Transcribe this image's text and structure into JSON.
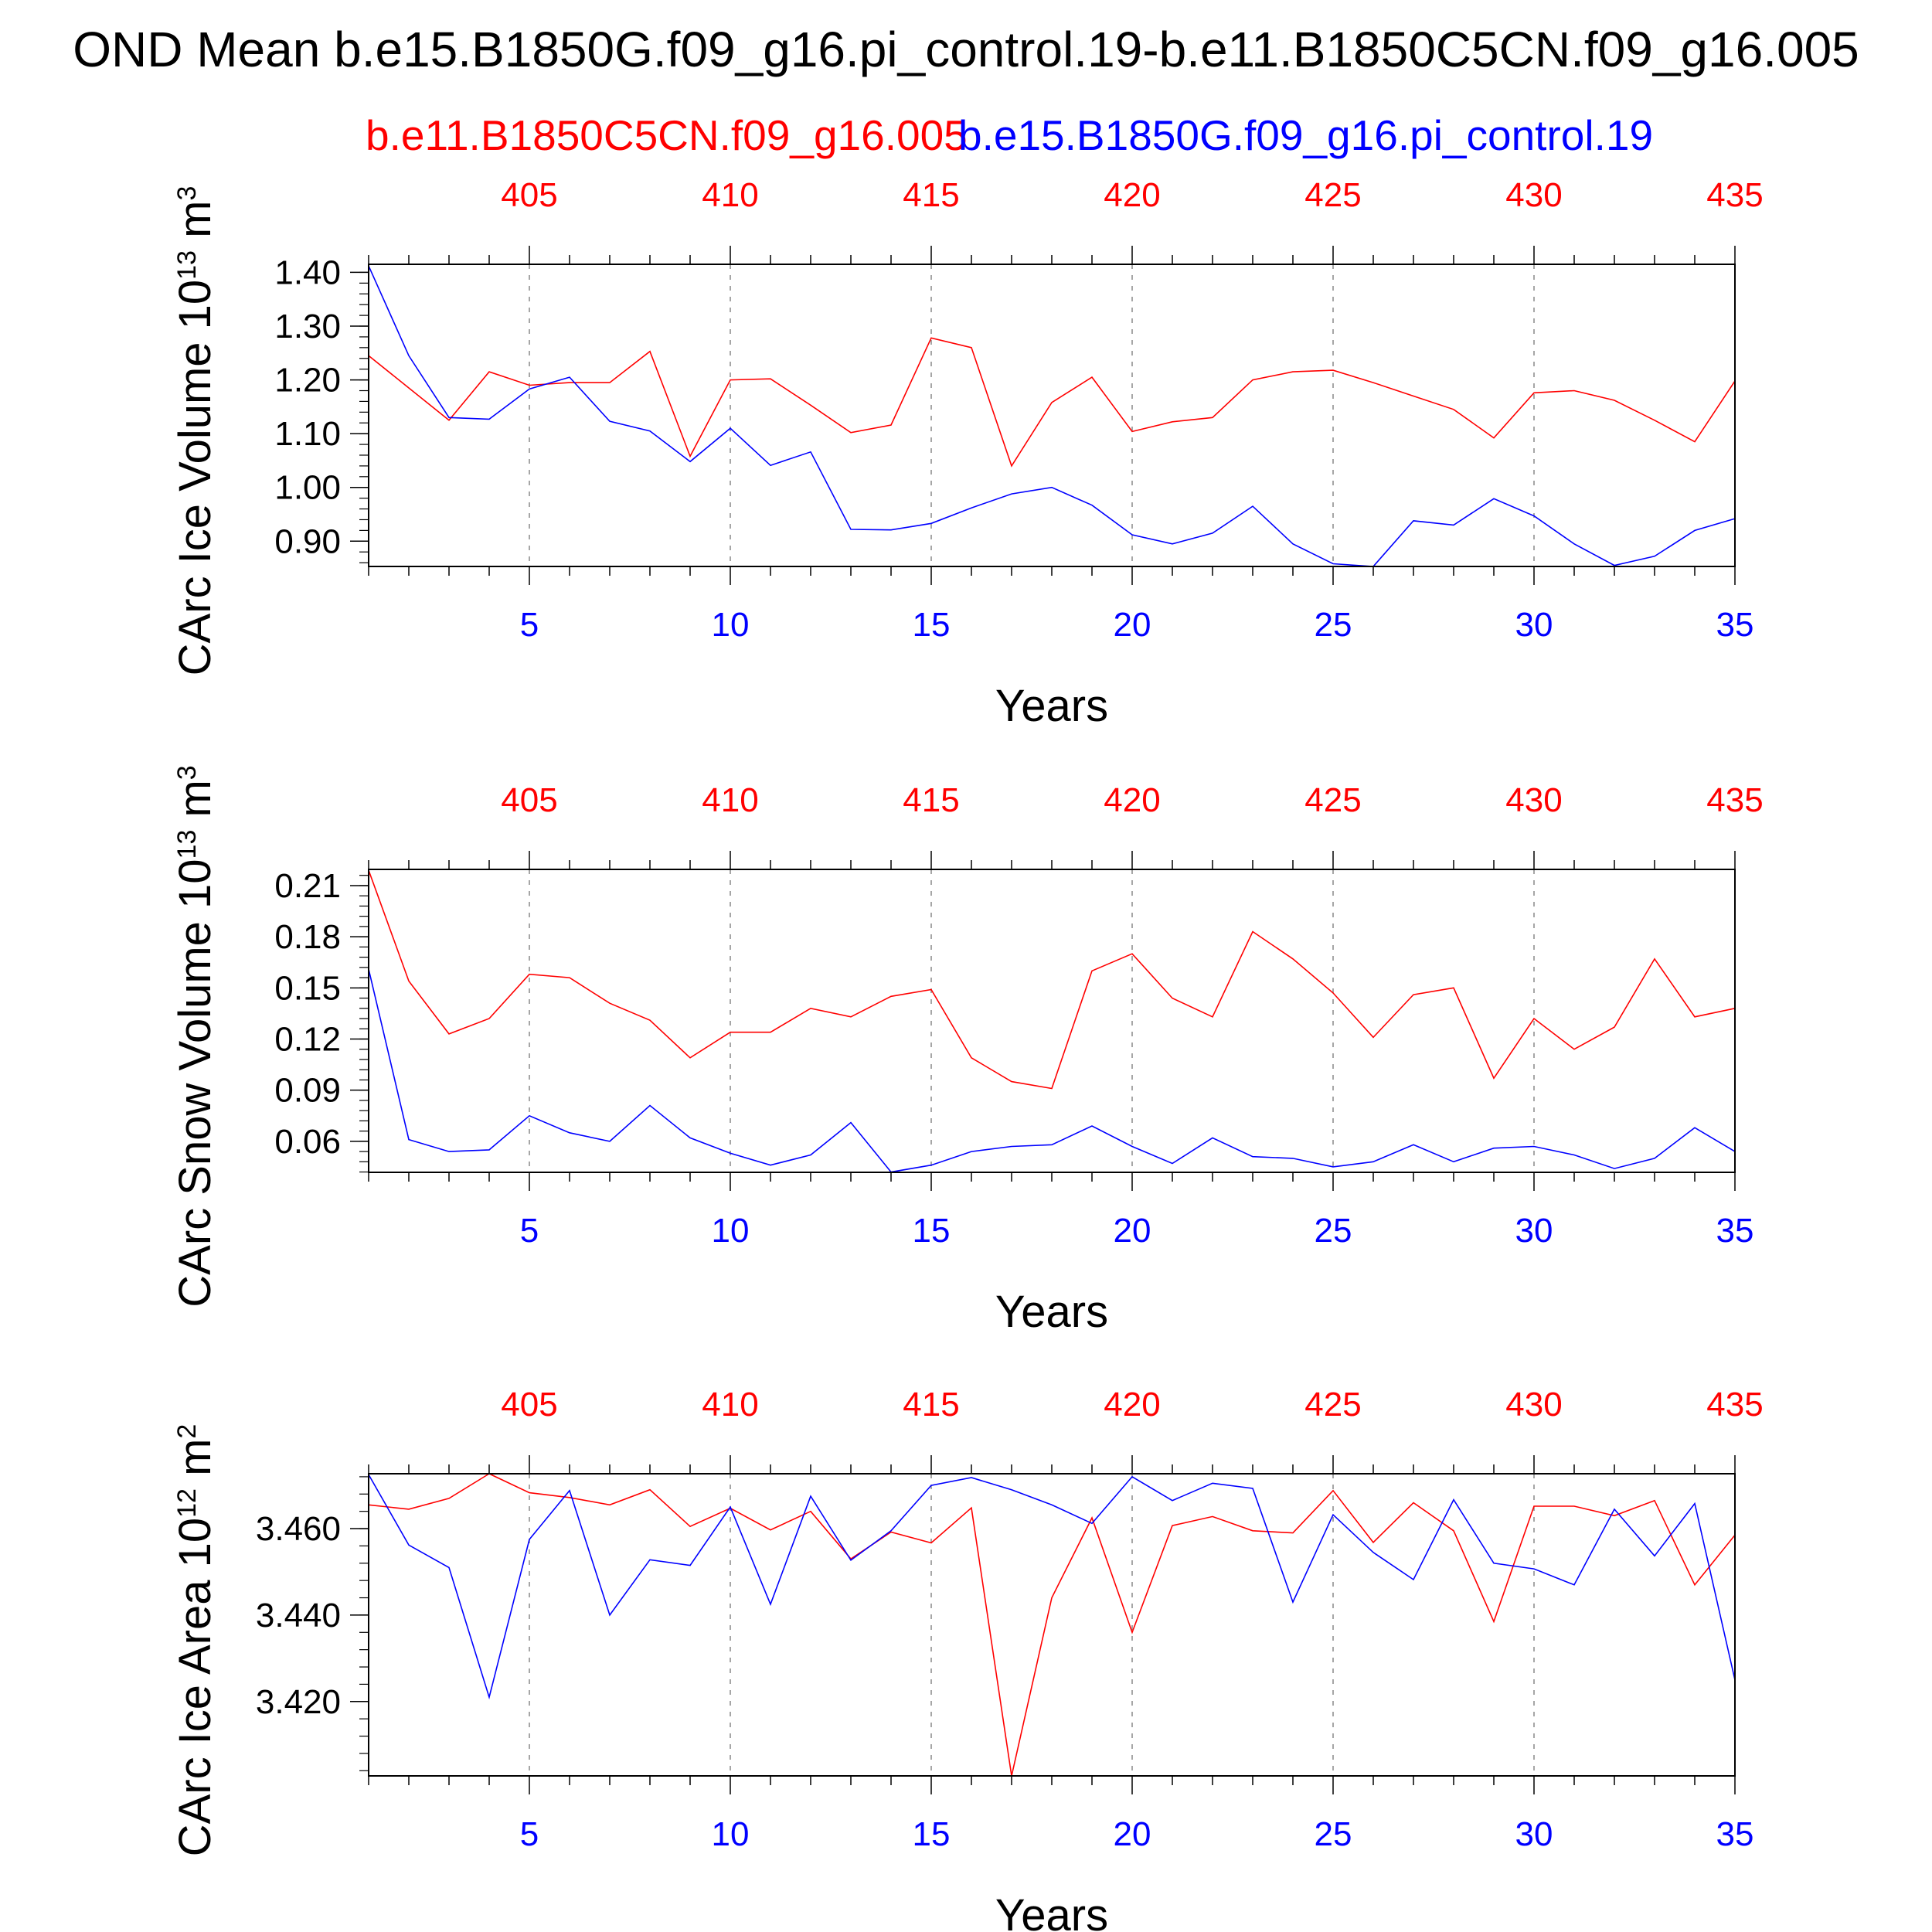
{
  "title": "OND Mean b.e15.B1850G.f09_g16.pi_control.19-b.e11.B1850C5CN.f09_g16.005",
  "legend": {
    "red_label": "b.e11.B1850C5CN.f09_g16.005",
    "blue_label": "b.e15.B1850G.f09_g16.pi_control.19"
  },
  "colors": {
    "red": "#ff0000",
    "blue": "#0000ff",
    "axis": "#000000",
    "grid": "#888888"
  },
  "chart_data": [
    {
      "type": "line",
      "ylabel_main": "CArc Ice Volume 10",
      "ylabel_exp": "13",
      "ylabel_unit": " m",
      "ylabel_unit_exp": "3",
      "xlabel": "Years",
      "bottom_ticks": [
        "5",
        "10",
        "15",
        "20",
        "25",
        "30",
        "35"
      ],
      "top_ticks": [
        "405",
        "410",
        "415",
        "420",
        "425",
        "430",
        "435"
      ],
      "yticks": [
        "0.90",
        "1.00",
        "1.10",
        "1.20",
        "1.30",
        "1.40"
      ],
      "ytick_values": [
        0.9,
        1.0,
        1.1,
        1.2,
        1.3,
        1.4
      ],
      "ylim": [
        0.853,
        1.415
      ],
      "xlim": [
        1,
        35
      ],
      "series": [
        {
          "name": "b.e11.B1850C5CN.f09_g16.005",
          "color": "#ff0000",
          "x": [
            1,
            2,
            3,
            4,
            5,
            6,
            7,
            8,
            9,
            10,
            11,
            12,
            13,
            14,
            15,
            16,
            17,
            18,
            19,
            20,
            21,
            22,
            23,
            24,
            25,
            26,
            27,
            28,
            29,
            30,
            31,
            32,
            33,
            34,
            35
          ],
          "values": [
            1.245,
            1.185,
            1.125,
            1.215,
            1.19,
            1.195,
            1.195,
            1.253,
            1.058,
            1.2,
            1.202,
            1.153,
            1.102,
            1.116,
            1.278,
            1.26,
            1.04,
            1.158,
            1.205,
            1.104,
            1.122,
            1.13,
            1.2,
            1.215,
            1.218,
            1.195,
            1.17,
            1.145,
            1.092,
            1.176,
            1.18,
            1.162,
            1.125,
            1.085,
            1.198
          ]
        },
        {
          "name": "b.e15.B1850G.f09_g16.pi_control.19",
          "color": "#0000ff",
          "x": [
            1,
            2,
            3,
            4,
            5,
            6,
            7,
            8,
            9,
            10,
            11,
            12,
            13,
            14,
            15,
            16,
            17,
            18,
            19,
            20,
            21,
            22,
            23,
            24,
            25,
            26,
            27,
            28,
            29,
            30,
            31,
            32,
            33,
            34,
            35
          ],
          "values": [
            1.412,
            1.245,
            1.13,
            1.127,
            1.183,
            1.205,
            1.123,
            1.105,
            1.048,
            1.11,
            1.041,
            1.066,
            0.922,
            0.921,
            0.933,
            0.962,
            0.988,
            1.0,
            0.967,
            0.912,
            0.895,
            0.915,
            0.965,
            0.895,
            0.858,
            0.853,
            0.938,
            0.93,
            0.979,
            0.947,
            0.895,
            0.855,
            0.872,
            0.92,
            0.942
          ]
        }
      ]
    },
    {
      "type": "line",
      "ylabel_main": "CArc Snow Volume 10",
      "ylabel_exp": "13",
      "ylabel_unit": " m",
      "ylabel_unit_exp": "3",
      "xlabel": "Years",
      "bottom_ticks": [
        "5",
        "10",
        "15",
        "20",
        "25",
        "30",
        "35"
      ],
      "top_ticks": [
        "405",
        "410",
        "415",
        "420",
        "425",
        "430",
        "435"
      ],
      "yticks": [
        "0.06",
        "0.09",
        "0.12",
        "0.15",
        "0.18",
        "0.21"
      ],
      "ytick_values": [
        0.06,
        0.09,
        0.12,
        0.15,
        0.18,
        0.21
      ],
      "ylim": [
        0.0418,
        0.2195
      ],
      "xlim": [
        1,
        35
      ],
      "series": [
        {
          "name": "b.e11.B1850C5CN.f09_g16.005",
          "color": "#ff0000",
          "x": [
            1,
            2,
            3,
            4,
            5,
            6,
            7,
            8,
            9,
            10,
            11,
            12,
            13,
            14,
            15,
            16,
            17,
            18,
            19,
            20,
            21,
            22,
            23,
            24,
            25,
            26,
            27,
            28,
            29,
            30,
            31,
            32,
            33,
            34,
            35
          ],
          "values": [
            0.219,
            0.154,
            0.123,
            0.132,
            0.158,
            0.156,
            0.141,
            0.131,
            0.109,
            0.124,
            0.124,
            0.138,
            0.133,
            0.145,
            0.149,
            0.109,
            0.095,
            0.091,
            0.16,
            0.17,
            0.144,
            0.133,
            0.183,
            0.167,
            0.147,
            0.121,
            0.146,
            0.15,
            0.097,
            0.132,
            0.114,
            0.127,
            0.167,
            0.133,
            0.138
          ]
        },
        {
          "name": "b.e15.B1850G.f09_g16.pi_control.19",
          "color": "#0000ff",
          "x": [
            1,
            2,
            3,
            4,
            5,
            6,
            7,
            8,
            9,
            10,
            11,
            12,
            13,
            14,
            15,
            16,
            17,
            18,
            19,
            20,
            21,
            22,
            23,
            24,
            25,
            26,
            27,
            28,
            29,
            30,
            31,
            32,
            33,
            34,
            35
          ],
          "values": [
            0.161,
            0.061,
            0.054,
            0.055,
            0.075,
            0.065,
            0.06,
            0.081,
            0.062,
            0.053,
            0.046,
            0.052,
            0.071,
            0.042,
            0.046,
            0.054,
            0.057,
            0.058,
            0.069,
            0.057,
            0.047,
            0.062,
            0.051,
            0.05,
            0.045,
            0.048,
            0.058,
            0.048,
            0.056,
            0.057,
            0.052,
            0.044,
            0.05,
            0.068,
            0.054
          ]
        }
      ]
    },
    {
      "type": "line",
      "ylabel_main": "CArc Ice Area 10",
      "ylabel_exp": "12",
      "ylabel_unit": " m",
      "ylabel_unit_exp": "2",
      "xlabel": "Years",
      "bottom_ticks": [
        "5",
        "10",
        "15",
        "20",
        "25",
        "30",
        "35"
      ],
      "top_ticks": [
        "405",
        "410",
        "415",
        "420",
        "425",
        "430",
        "435"
      ],
      "yticks": [
        "3.420",
        "3.440",
        "3.460"
      ],
      "ytick_values": [
        3.42,
        3.44,
        3.46
      ],
      "ylim": [
        3.4028,
        3.4727
      ],
      "xlim": [
        1,
        35
      ],
      "series": [
        {
          "name": "b.e11.B1850C5CN.f09_g16.005",
          "color": "#ff0000",
          "x": [
            1,
            2,
            3,
            4,
            5,
            6,
            7,
            8,
            9,
            10,
            11,
            12,
            13,
            14,
            15,
            16,
            17,
            18,
            19,
            20,
            21,
            22,
            23,
            24,
            25,
            26,
            27,
            28,
            29,
            30,
            31,
            32,
            33,
            34,
            35
          ],
          "values": [
            3.4655,
            3.4645,
            3.467,
            3.4727,
            3.4683,
            3.4672,
            3.4655,
            3.469,
            3.4605,
            3.4647,
            3.4597,
            3.464,
            3.453,
            3.4592,
            3.4567,
            3.4648,
            3.4028,
            3.444,
            3.4625,
            3.436,
            3.4607,
            3.4628,
            3.4595,
            3.459,
            3.4688,
            3.4568,
            3.466,
            3.4595,
            3.4385,
            3.4652,
            3.4652,
            3.463,
            3.4665,
            3.447,
            3.4585
          ]
        },
        {
          "name": "b.e15.B1850G.f09_g16.pi_control.19",
          "color": "#0000ff",
          "x": [
            1,
            2,
            3,
            4,
            5,
            6,
            7,
            8,
            9,
            10,
            11,
            12,
            13,
            14,
            15,
            16,
            17,
            18,
            19,
            20,
            21,
            22,
            23,
            24,
            25,
            26,
            27,
            28,
            29,
            30,
            31,
            32,
            33,
            34,
            35
          ],
          "values": [
            3.4725,
            3.4562,
            3.451,
            3.421,
            3.4575,
            3.4688,
            3.44,
            3.4528,
            3.4515,
            3.465,
            3.4425,
            3.4675,
            3.4527,
            3.4595,
            3.47,
            3.4718,
            3.469,
            3.4655,
            3.4612,
            3.472,
            3.4665,
            3.4705,
            3.4693,
            3.443,
            3.4632,
            3.4545,
            3.4482,
            3.4667,
            3.452,
            3.4507,
            3.447,
            3.4645,
            3.4537,
            3.4658,
            3.425
          ]
        }
      ]
    }
  ]
}
